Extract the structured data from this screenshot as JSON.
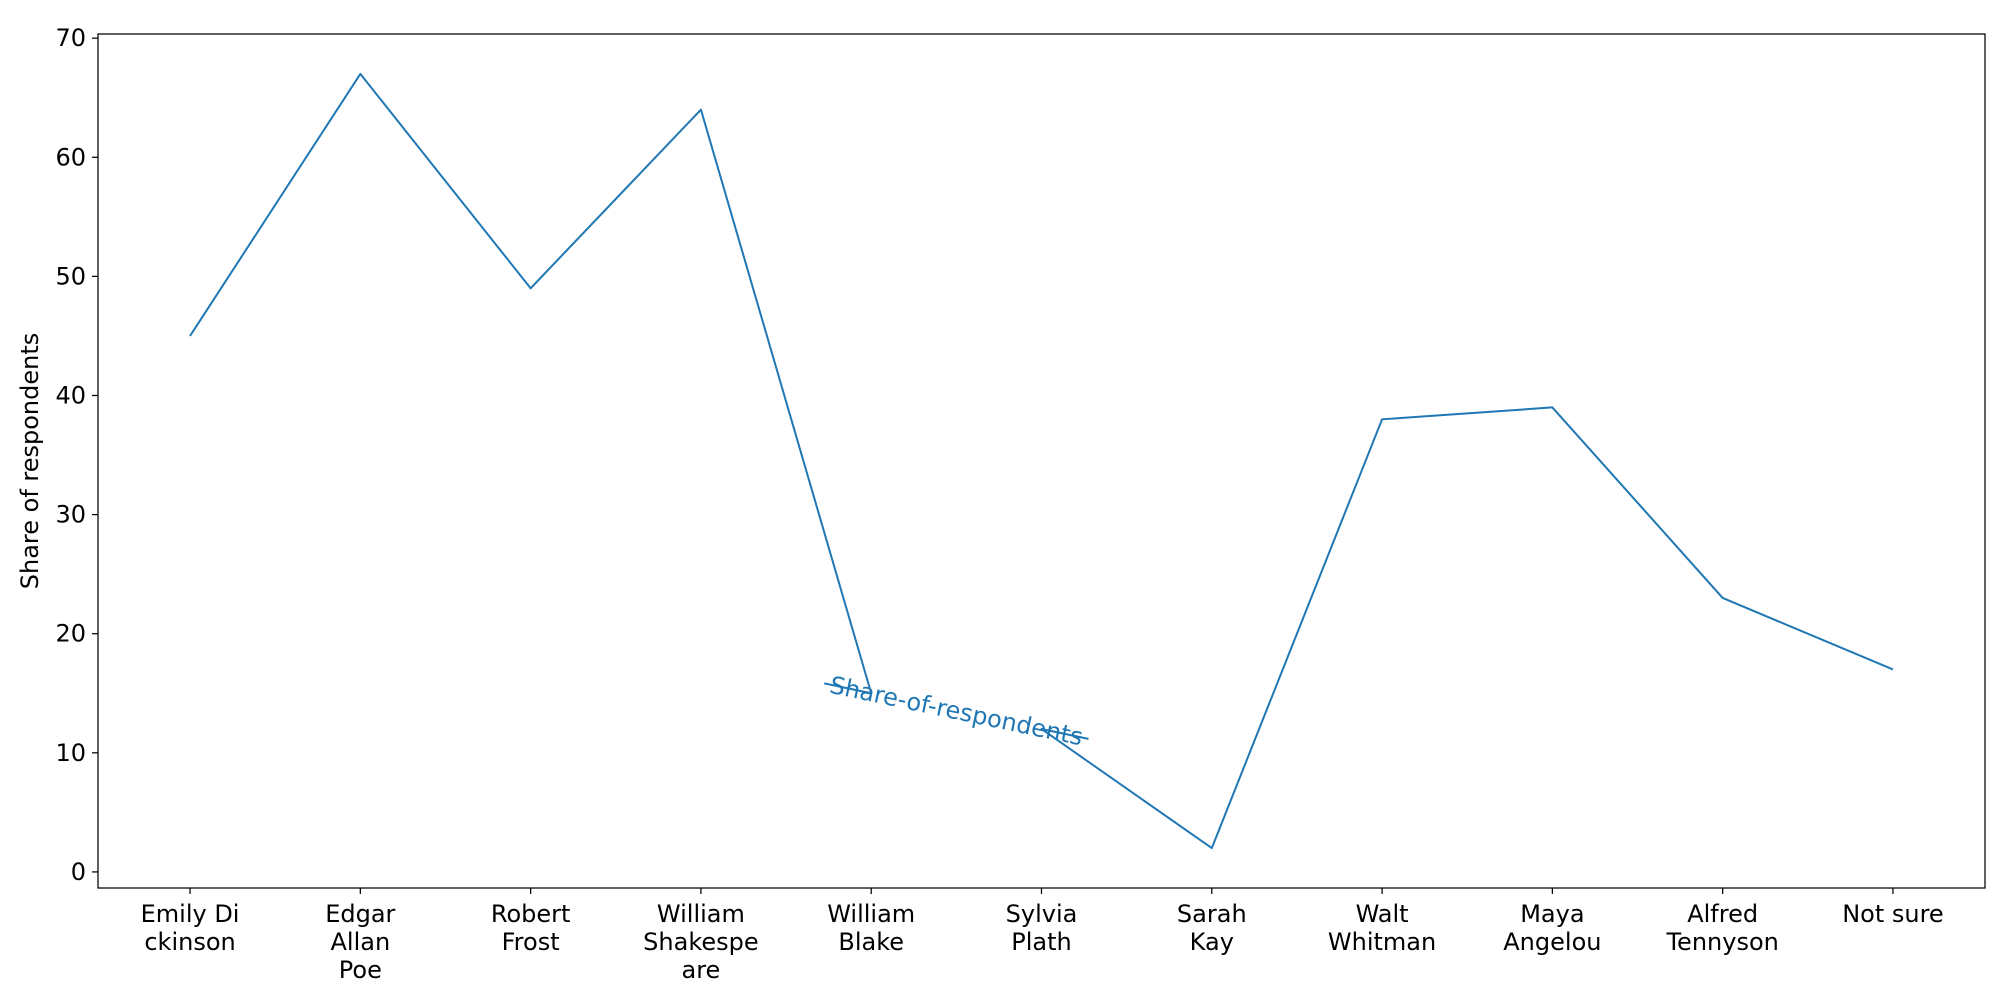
{
  "chart_data": {
    "type": "line",
    "title": "",
    "xlabel": "",
    "ylabel": "Share of respondents",
    "ylim": [
      -1.35,
      70.35
    ],
    "yticks": [
      0,
      10,
      20,
      30,
      40,
      50,
      60,
      70
    ],
    "grid": false,
    "legend": "none",
    "categories": [
      [
        "Emily Di",
        "ckinson"
      ],
      [
        "Edgar",
        "Allan",
        "Poe"
      ],
      [
        "Robert",
        "Frost"
      ],
      [
        "William",
        "Shakespe",
        "are"
      ],
      [
        "William",
        "Blake"
      ],
      [
        "Sylvia",
        "Plath"
      ],
      [
        "Sarah",
        "Kay"
      ],
      [
        "Walt",
        "Whitman"
      ],
      [
        "Maya",
        "Angelou"
      ],
      [
        "Alfred",
        "Tennyson"
      ],
      [
        "Not sure"
      ]
    ],
    "series": [
      {
        "name": "Share-of-respondents",
        "color": "#1f77b4",
        "values": [
          45,
          67,
          49,
          64,
          15,
          12,
          2,
          38,
          39,
          23,
          17
        ]
      }
    ]
  }
}
